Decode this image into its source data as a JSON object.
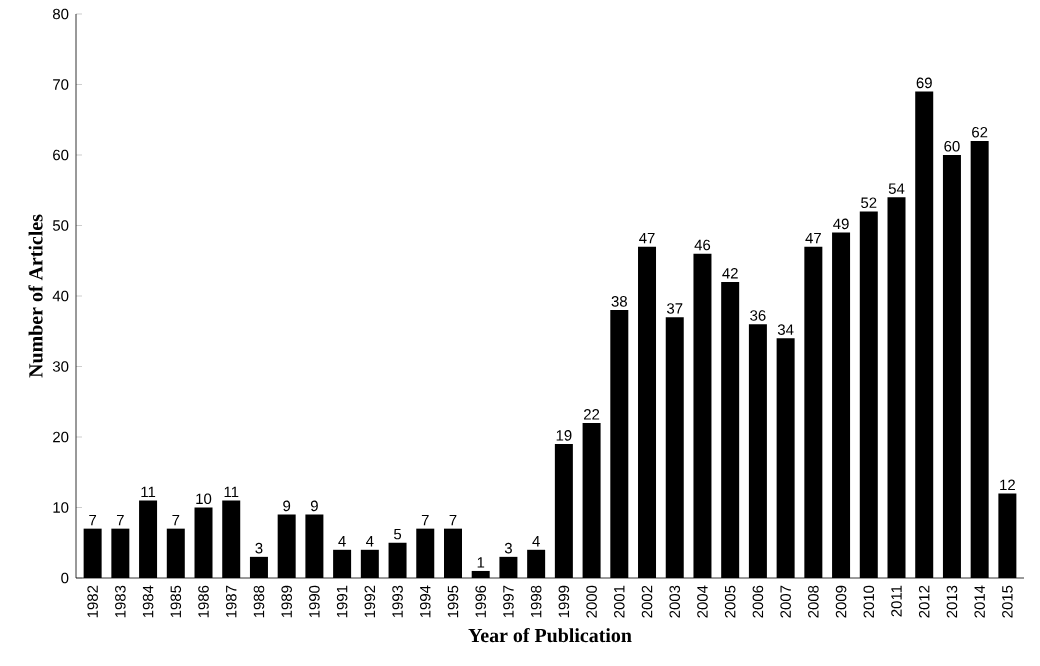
{
  "chart_data": {
    "type": "bar",
    "xlabel": "Year of Publication",
    "ylabel": "Number of Articles",
    "categories": [
      "1982",
      "1983",
      "1984",
      "1985",
      "1986",
      "1987",
      "1988",
      "1989",
      "1990",
      "1991",
      "1992",
      "1993",
      "1994",
      "1995",
      "1996",
      "1997",
      "1998",
      "1999",
      "2000",
      "2001",
      "2002",
      "2003",
      "2004",
      "2005",
      "2006",
      "2007",
      "2008",
      "2009",
      "2010",
      "2011",
      "2012",
      "2013",
      "2014",
      "2015"
    ],
    "values": [
      7,
      7,
      11,
      7,
      10,
      11,
      3,
      9,
      9,
      4,
      4,
      5,
      7,
      7,
      1,
      3,
      4,
      19,
      22,
      38,
      47,
      37,
      46,
      42,
      36,
      34,
      47,
      49,
      52,
      54,
      69,
      60,
      62,
      12
    ],
    "color": "#000000",
    "ylim": [
      0,
      80
    ],
    "yticks": [
      0,
      10,
      20,
      30,
      40,
      50,
      60,
      70,
      80
    ],
    "data_labels": true
  }
}
